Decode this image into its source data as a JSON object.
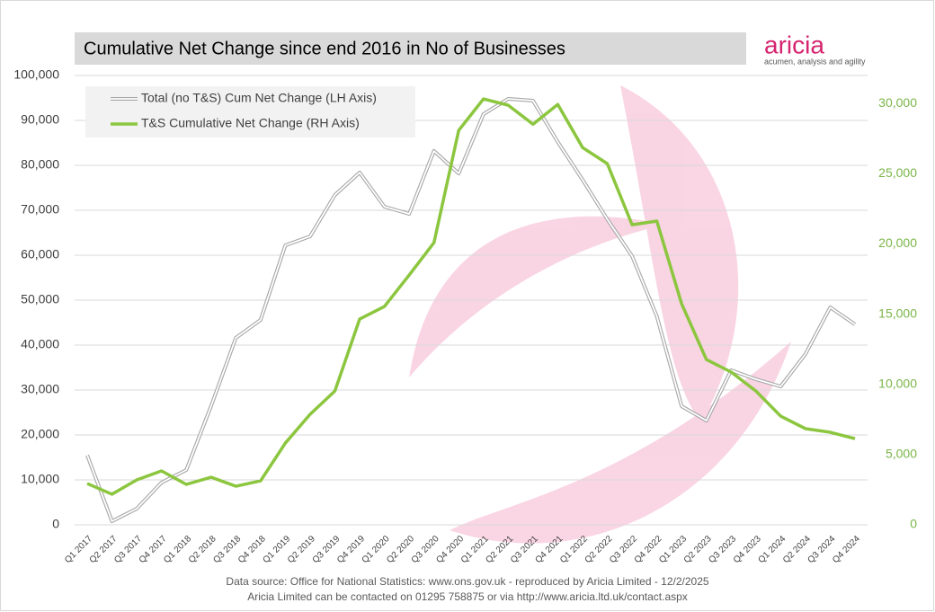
{
  "chart_data": {
    "type": "line",
    "title": "Cumulative Net Change since end 2016 in No of Businesses",
    "logo": {
      "name": "aricia",
      "tagline": "acumen, analysis and agility"
    },
    "footer": [
      "Data source: Office for National Statistics: www.ons.gov.uk - reproduced by Aricia Limited - 12/2/2025",
      "Aricia Limited can be contacted on 01295 758875 or via http://www.aricia.ltd.uk/contact.aspx"
    ],
    "categories": [
      "Q1 2017",
      "Q2 2017",
      "Q3 2017",
      "Q4 2017",
      "Q1 2018",
      "Q2 2018",
      "Q3 2018",
      "Q4 2018",
      "Q1 2019",
      "Q2 2019",
      "Q3 2019",
      "Q4 2019",
      "Q1 2020",
      "Q2 2020",
      "Q3 2020",
      "Q4 2020",
      "Q1 2021",
      "Q2 2021",
      "Q3 2021",
      "Q4 2021",
      "Q1 2022",
      "Q2 2022",
      "Q3 2022",
      "Q4 2022",
      "Q1 2023",
      "Q2 2023",
      "Q3 2023",
      "Q4 2023",
      "Q1 2024",
      "Q2 2024",
      "Q3 2024",
      "Q4 2024"
    ],
    "series": [
      {
        "name": "Total (no T&S) Cum Net Change (LH Axis)",
        "color": "#a6a6a6",
        "axis": "y",
        "values": [
          15500,
          800,
          3600,
          9400,
          12200,
          26400,
          41600,
          45600,
          62200,
          64200,
          73400,
          78400,
          70800,
          69200,
          83200,
          78200,
          91400,
          94800,
          94400,
          85200,
          76800,
          68000,
          59800,
          46400,
          26400,
          23200,
          34400,
          32400,
          30800,
          38000,
          48400,
          44600
        ]
      },
      {
        "name": "T&S Cumulative Net Change (RH Axis)",
        "color": "#8cc63f",
        "axis": "y2",
        "values": [
          2940,
          2180,
          3200,
          3840,
          2880,
          3390,
          2750,
          3130,
          5820,
          7870,
          9530,
          14650,
          15550,
          17790,
          20090,
          28090,
          30330,
          29880,
          28530,
          29940,
          26870,
          25720,
          21370,
          21630,
          15740,
          11770,
          10880,
          9530,
          7740,
          6850,
          6590,
          6140
        ]
      }
    ],
    "ylim": [
      0,
      100000
    ],
    "yticks": [
      0,
      {
        "value": 10000,
        "label": "10,000"
      },
      {
        "value": 20000,
        "label": "20,000"
      },
      {
        "value": 30000,
        "label": "30,000"
      },
      {
        "value": 40000,
        "label": "40,000"
      },
      {
        "value": 50000,
        "label": "50,000"
      },
      {
        "value": 60000,
        "label": "60,000"
      },
      {
        "value": 70000,
        "label": "70,000"
      },
      {
        "value": 80000,
        "label": "80,000"
      },
      {
        "value": 90000,
        "label": "90,000"
      },
      {
        "value": 100000,
        "label": "100,000"
      }
    ],
    "y2lim": [
      0,
      32000
    ],
    "y2ticks": [
      0,
      {
        "value": 5000,
        "label": "5,000"
      },
      {
        "value": 10000,
        "label": "10,000"
      },
      {
        "value": 15000,
        "label": "15,000"
      },
      {
        "value": 20000,
        "label": "20,000"
      },
      {
        "value": 25000,
        "label": "25,000"
      },
      {
        "value": 30000,
        "label": "30,000"
      }
    ],
    "y2_tick_color": "#7ab648",
    "grid": true,
    "legend": "top-left"
  }
}
